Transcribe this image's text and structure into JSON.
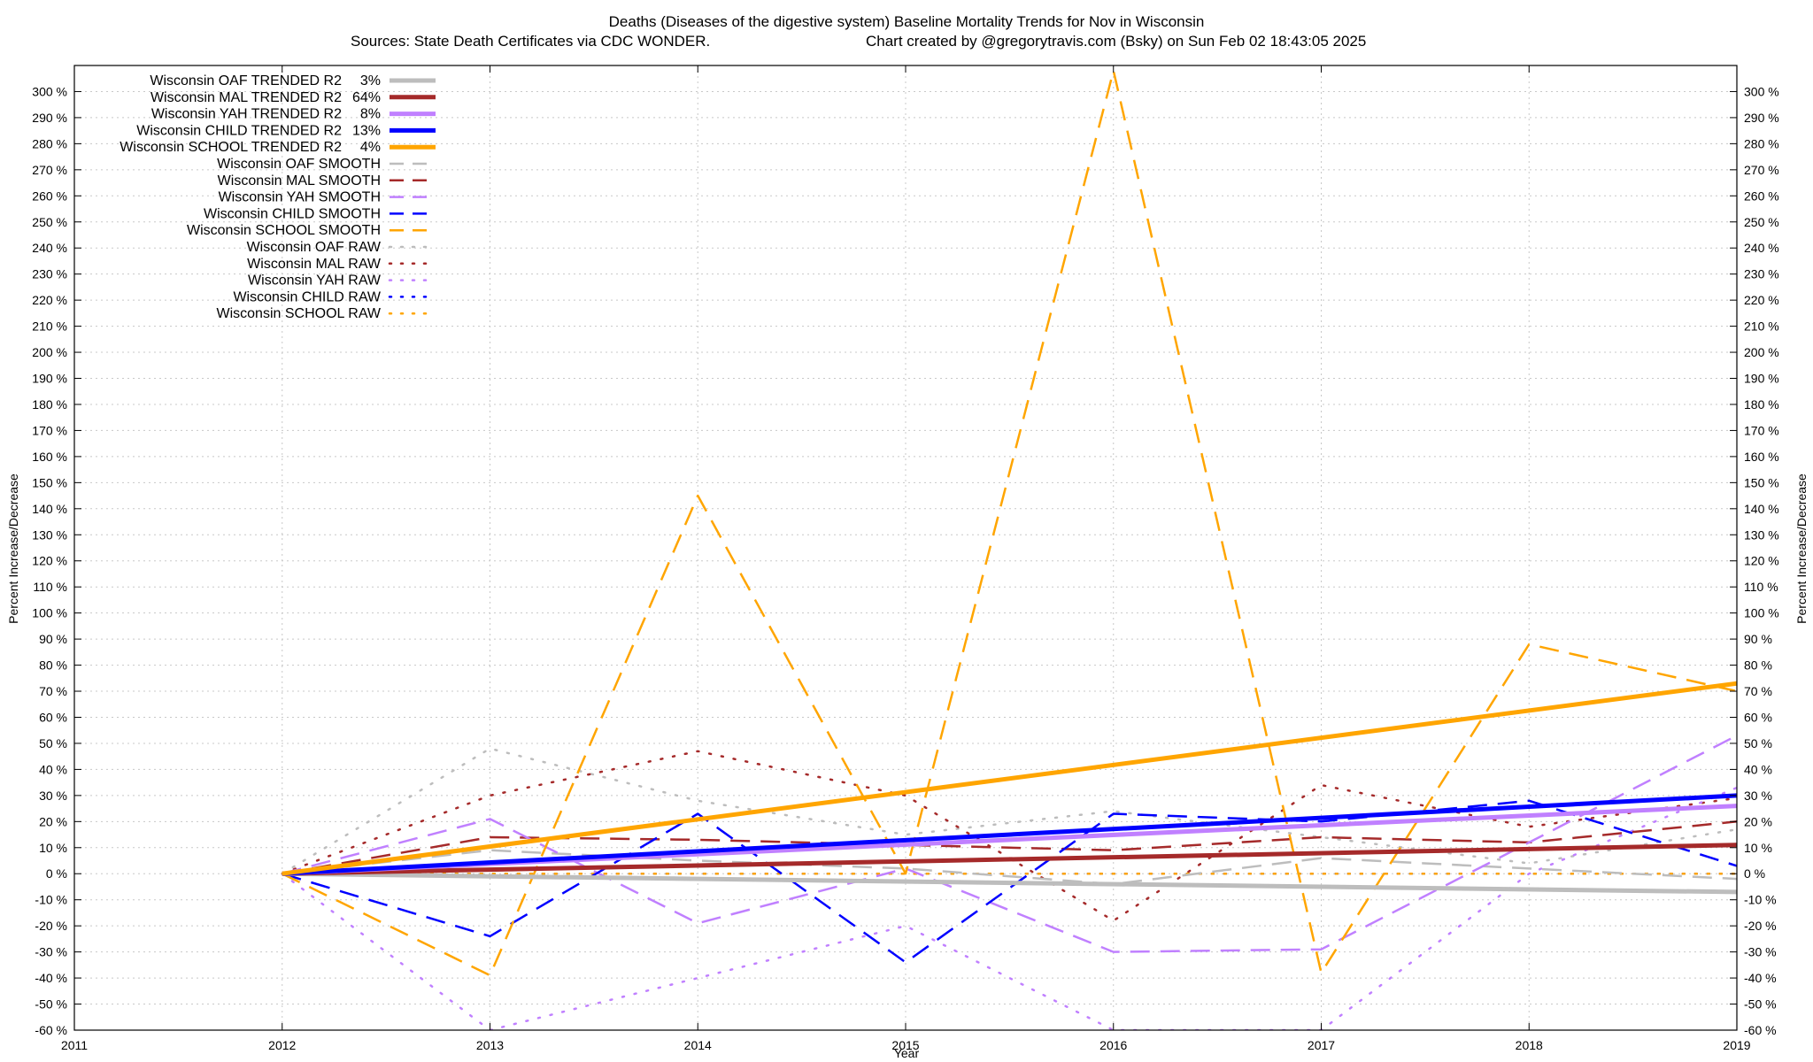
{
  "chart_data": {
    "type": "line",
    "title": "Deaths (Diseases of the digestive system)  Baseline Mortality Trends for Nov in Wisconsin",
    "subtitle_left": "Sources: State Death Certificates via CDC WONDER.",
    "subtitle_right": "Chart created by @gregorytravis.com (Bsky) on Sun Feb 02 18:43:05 2025",
    "xlabel": "Year",
    "ylabel": "Percent Increase/Decrease",
    "xlim": [
      2011,
      2019
    ],
    "ylim": [
      -60,
      310
    ],
    "grid": true,
    "legend_position": "top-left",
    "x_ticks": [
      "2011",
      "2012",
      "2013",
      "2014",
      "2015",
      "2016",
      "2017",
      "2018",
      "2019"
    ],
    "y_ticks": [
      "300 %",
      "290 %",
      "280 %",
      "270 %",
      "260 %",
      "250 %",
      "240 %",
      "230 %",
      "220 %",
      "210 %",
      "200 %",
      "190 %",
      "180 %",
      "170 %",
      "160 %",
      "150 %",
      "140 %",
      "130 %",
      "120 %",
      "110 %",
      "100 %",
      "90 %",
      "80 %",
      "70 %",
      "60 %",
      "50 %",
      "40 %",
      "30 %",
      "20 %",
      "10 %",
      "0 %",
      "-10 %",
      "-20 %",
      "-30 %",
      "-40 %",
      "-50 %",
      "-60 %"
    ],
    "series": [
      {
        "name": "Wisconsin OAF TRENDED R2",
        "r2": "3%",
        "color": "#bdbdbd",
        "style": "solid",
        "width": 5,
        "x": [
          2012,
          2019
        ],
        "values": [
          0,
          -7
        ]
      },
      {
        "name": "Wisconsin MAL TRENDED R2",
        "r2": "64%",
        "color": "#a52a2a",
        "style": "solid",
        "width": 5,
        "x": [
          2012,
          2019
        ],
        "values": [
          0,
          11
        ]
      },
      {
        "name": "Wisconsin YAH TRENDED R2",
        "r2": "8%",
        "color": "#c080ff",
        "style": "solid",
        "width": 5,
        "x": [
          2012,
          2019
        ],
        "values": [
          0,
          26
        ]
      },
      {
        "name": "Wisconsin CHILD TRENDED R2",
        "r2": "13%",
        "color": "#0000ff",
        "style": "solid",
        "width": 5,
        "x": [
          2012,
          2019
        ],
        "values": [
          0,
          30
        ]
      },
      {
        "name": "Wisconsin SCHOOL TRENDED R2",
        "r2": "4%",
        "color": "#ffa500",
        "style": "solid",
        "width": 5,
        "x": [
          2012,
          2019
        ],
        "values": [
          0,
          73
        ]
      },
      {
        "name": "Wisconsin OAF SMOOTH",
        "r2": "",
        "color": "#bdbdbd",
        "style": "dash",
        "width": 2.5,
        "x": [
          2012,
          2013,
          2014,
          2015,
          2016,
          2017,
          2018,
          2019
        ],
        "values": [
          0,
          9,
          5,
          2,
          -4,
          6,
          2,
          -2
        ]
      },
      {
        "name": "Wisconsin MAL SMOOTH",
        "r2": "",
        "color": "#a52a2a",
        "style": "dash",
        "width": 2.5,
        "x": [
          2012,
          2013,
          2014,
          2015,
          2016,
          2017,
          2018,
          2019
        ],
        "values": [
          0,
          14,
          13,
          11,
          9,
          14,
          12,
          20
        ]
      },
      {
        "name": "Wisconsin YAH SMOOTH",
        "r2": "",
        "color": "#c080ff",
        "style": "dash",
        "width": 2.5,
        "x": [
          2012,
          2013,
          2014,
          2015,
          2016,
          2017,
          2018,
          2019
        ],
        "values": [
          0,
          21,
          -19,
          2,
          -30,
          -29,
          12,
          53
        ]
      },
      {
        "name": "Wisconsin CHILD SMOOTH",
        "r2": "",
        "color": "#0000ff",
        "style": "dash",
        "width": 2.5,
        "x": [
          2012,
          2013,
          2014,
          2015,
          2016,
          2017,
          2018,
          2019
        ],
        "values": [
          0,
          -24,
          23,
          -34,
          23,
          20,
          28,
          3
        ]
      },
      {
        "name": "Wisconsin SCHOOL SMOOTH",
        "r2": "",
        "color": "#ffa500",
        "style": "dash",
        "width": 2.5,
        "x": [
          2012,
          2013,
          2014,
          2015,
          2016,
          2017,
          2018,
          2019
        ],
        "values": [
          0,
          -39,
          145,
          0,
          308,
          -38,
          88,
          70
        ]
      },
      {
        "name": "Wisconsin OAF RAW",
        "r2": "",
        "color": "#bdbdbd",
        "style": "dot",
        "width": 2.5,
        "x": [
          2012,
          2013,
          2014,
          2015,
          2016,
          2017,
          2018,
          2019
        ],
        "values": [
          0,
          48,
          28,
          15,
          24,
          14,
          4,
          17
        ]
      },
      {
        "name": "Wisconsin MAL RAW",
        "r2": "",
        "color": "#a52a2a",
        "style": "dot",
        "width": 2.5,
        "x": [
          2012,
          2013,
          2014,
          2015,
          2016,
          2017,
          2018,
          2019
        ],
        "values": [
          0,
          30,
          47,
          30,
          -18,
          34,
          18,
          29
        ]
      },
      {
        "name": "Wisconsin YAH RAW",
        "r2": "",
        "color": "#c080ff",
        "style": "dot",
        "width": 2.5,
        "x": [
          2012,
          2013,
          2014,
          2015,
          2016,
          2017,
          2018,
          2019
        ],
        "values": [
          0,
          -60,
          -40,
          -20,
          -60,
          -60,
          0,
          33
        ]
      },
      {
        "name": "Wisconsin CHILD RAW",
        "r2": "",
        "color": "#0000ff",
        "style": "dot",
        "width": 2.5,
        "x": [
          2012,
          2013,
          2014,
          2015,
          2016,
          2017,
          2018,
          2019
        ],
        "values": [
          0,
          0,
          0,
          0,
          0,
          0,
          0,
          0
        ]
      },
      {
        "name": "Wisconsin SCHOOL RAW",
        "r2": "",
        "color": "#ffa500",
        "style": "dot",
        "width": 2.5,
        "x": [
          2012,
          2013,
          2014,
          2015,
          2016,
          2017,
          2018,
          2019
        ],
        "values": [
          0,
          0,
          0,
          0,
          0,
          0,
          0,
          0
        ]
      }
    ]
  }
}
